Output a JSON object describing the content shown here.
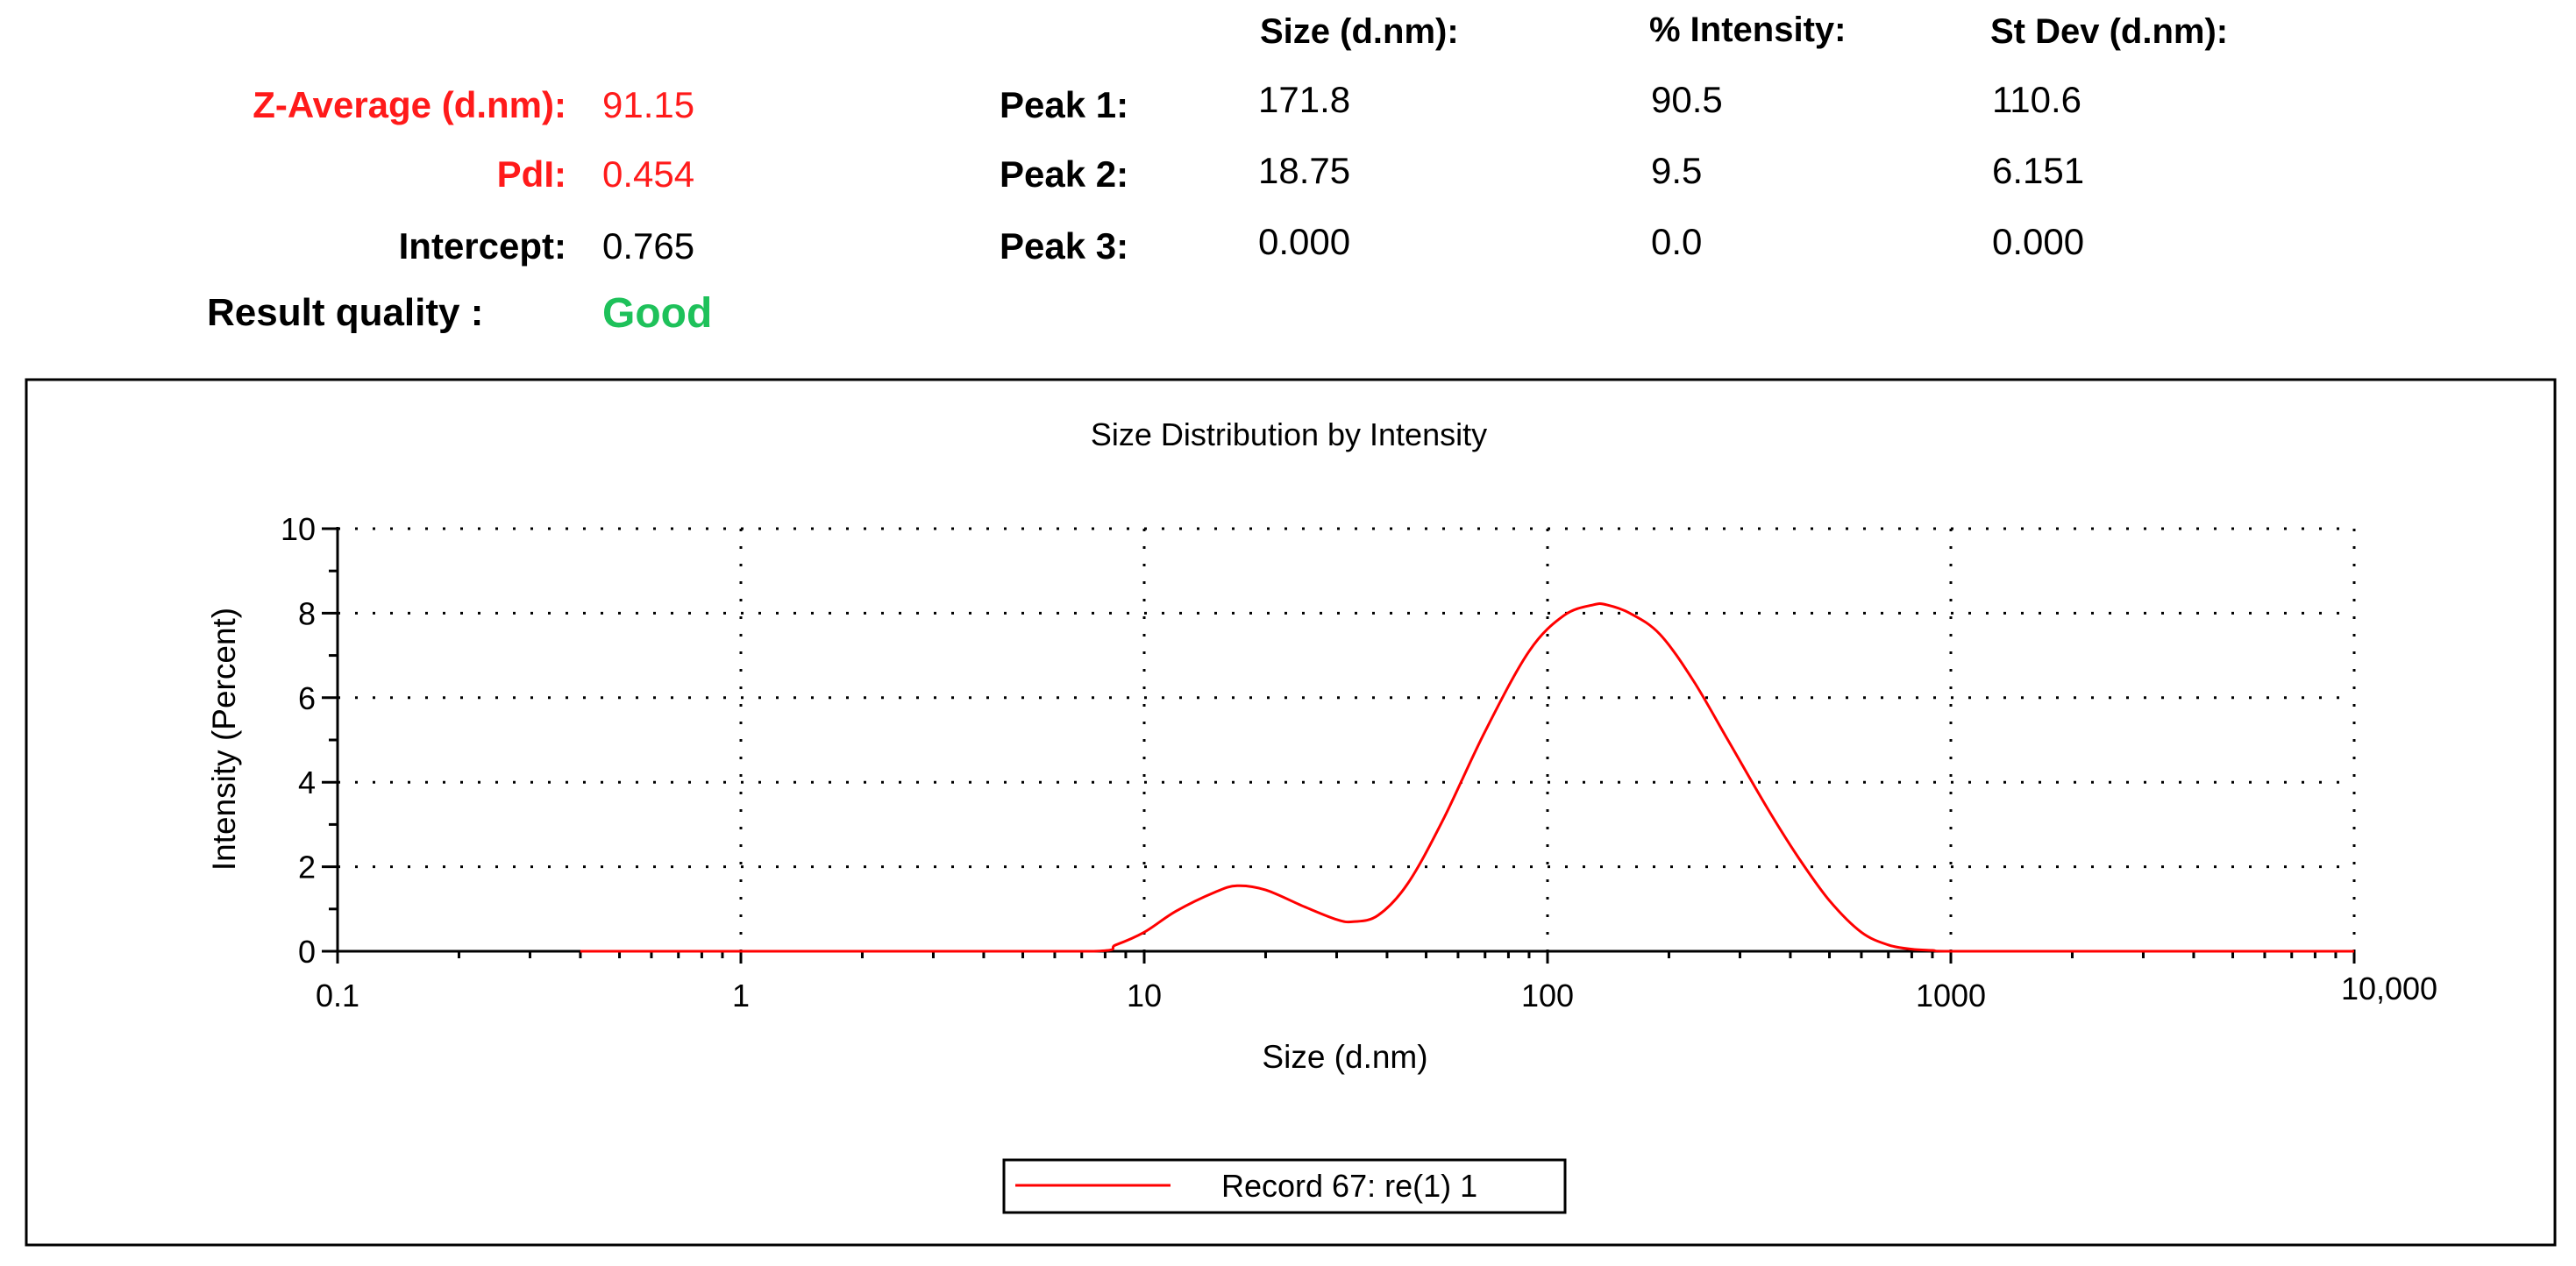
{
  "summary": {
    "z_average_label": "Z-Average (d.nm):",
    "z_average_value": "91.15",
    "pdi_label": "PdI:",
    "pdi_value": "0.454",
    "intercept_label": "Intercept:",
    "intercept_value": "0.765",
    "quality_label": "Result quality :",
    "quality_value": "Good",
    "accent_red": "#ff1a1a",
    "accent_green": "#1ec15a"
  },
  "peaks": {
    "headers": [
      "Size (d.nm):",
      "% Intensity:",
      "St Dev (d.nm):"
    ],
    "rows": [
      {
        "label": "Peak 1:",
        "size": "171.8",
        "intensity": "90.5",
        "stdev": "110.6"
      },
      {
        "label": "Peak 2:",
        "size": "18.75",
        "intensity": "9.5",
        "stdev": "6.151"
      },
      {
        "label": "Peak 3:",
        "size": "0.000",
        "intensity": "0.0",
        "stdev": "0.000"
      }
    ]
  },
  "chart_data": {
    "type": "line",
    "title": "Size Distribution by Intensity",
    "xlabel": "Size (d.nm)",
    "ylabel": "Intensity (Percent)",
    "xscale": "log",
    "xlim": [
      0.1,
      10000
    ],
    "ylim": [
      0,
      10
    ],
    "x_ticks": [
      0.1,
      1,
      10,
      100,
      1000,
      10000
    ],
    "x_tick_labels": [
      "0.1",
      "1",
      "10",
      "100",
      "1000",
      "10,000"
    ],
    "y_ticks": [
      0,
      2,
      4,
      6,
      8,
      10
    ],
    "y_tick_labels": [
      "0",
      "2",
      "4",
      "6",
      "8",
      "10"
    ],
    "grid": true,
    "legend_position": "bottom",
    "series": [
      {
        "name": "Record 67: re(1) 1",
        "color": "#ff0000",
        "x": [
          0.4,
          1,
          3,
          7.5,
          8.5,
          10,
          12,
          15,
          17,
          20,
          25,
          30,
          33,
          38,
          45,
          55,
          70,
          90,
          110,
          130,
          140,
          160,
          190,
          230,
          280,
          350,
          420,
          500,
          600,
          700,
          800,
          900,
          1000,
          2000,
          5000,
          10000
        ],
        "y": [
          0,
          0,
          0,
          0,
          0.15,
          0.45,
          0.95,
          1.4,
          1.55,
          1.45,
          1.05,
          0.75,
          0.7,
          0.85,
          1.6,
          3.1,
          5.2,
          7.1,
          7.95,
          8.2,
          8.2,
          8.0,
          7.5,
          6.4,
          5.0,
          3.4,
          2.2,
          1.2,
          0.45,
          0.15,
          0.05,
          0.02,
          0,
          0,
          0,
          0
        ]
      }
    ]
  }
}
